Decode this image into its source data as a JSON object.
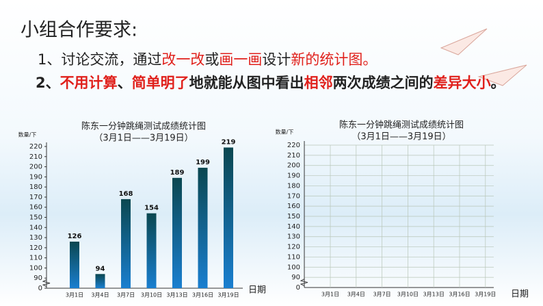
{
  "heading": "小组合作要求:",
  "items": [
    {
      "bold": false,
      "segments": [
        {
          "text": "1、讨论交流，通过",
          "color": "#222222"
        },
        {
          "text": "改一改",
          "color": "#e0201b"
        },
        {
          "text": "或",
          "color": "#222222"
        },
        {
          "text": "画一画",
          "color": "#e0201b"
        },
        {
          "text": "设计",
          "color": "#222222"
        },
        {
          "text": "新的统计图。",
          "color": "#e0201b"
        }
      ]
    },
    {
      "bold": true,
      "segments": [
        {
          "text": "2、",
          "color": "#222222"
        },
        {
          "text": "不用计算",
          "color": "#e0201b"
        },
        {
          "text": "、",
          "color": "#222222"
        },
        {
          "text": "简单明了",
          "color": "#e0201b"
        },
        {
          "text": "地就能从图中看出",
          "color": "#222222"
        },
        {
          "text": "相邻",
          "color": "#e0201b"
        },
        {
          "text": "两次成绩之间的",
          "color": "#222222"
        },
        {
          "text": "差异大小",
          "color": "#e0201b"
        },
        {
          "text": "。",
          "color": "#222222"
        }
      ]
    }
  ],
  "chart_data": [
    {
      "type": "bar",
      "title": "陈东一分钟跳绳测试成绩统计图",
      "subtitle": "（3月1日——3月19日）",
      "y_label": "数量/下",
      "x_label": "日期",
      "categories": [
        "3月1日",
        "3月4日",
        "3月7日",
        "3月10日",
        "3月13日",
        "3月16日",
        "3月19日"
      ],
      "values": [
        126,
        94,
        168,
        154,
        189,
        199,
        219
      ],
      "colors": [
        "#0b4750",
        "#1a7fd0"
      ],
      "ylim": [
        80,
        220
      ],
      "axis_break": true,
      "grid": false,
      "yticks": [
        {
          "value": 80,
          "label": "0"
        },
        90,
        100,
        110,
        120,
        130,
        140,
        150,
        160,
        170,
        180,
        190,
        200,
        210,
        220
      ]
    },
    {
      "type": "line",
      "title": "陈东一分钟跳绳测试成绩统计图",
      "subtitle": "（3月1日——3月19日）",
      "y_label": "数量/下",
      "x_label": "日期",
      "categories": [
        "3月1日",
        "3月4日",
        "3月7日",
        "3月10日",
        "3月13日",
        "3月16日",
        "3月19日"
      ],
      "ylim": [
        80,
        220
      ],
      "axis_break": true,
      "grid": true,
      "yticks": [
        {
          "value": 80,
          "label": "0"
        },
        90,
        100,
        110,
        120,
        130,
        140,
        150,
        160,
        170,
        180,
        190,
        200,
        210,
        220
      ]
    }
  ]
}
